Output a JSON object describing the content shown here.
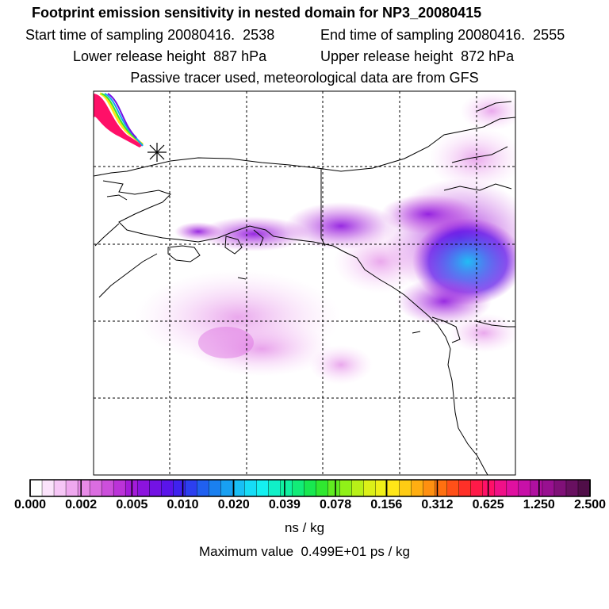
{
  "header": {
    "title": "Footprint emission sensitivity in nested domain for NP3_20080415",
    "start_time": "Start time of sampling 20080416.  2538",
    "end_time": "End time of sampling 20080416.  2555",
    "lower_height": "Lower release height  887 hPa",
    "upper_height": "Upper release height  872 hPa",
    "tracer_note": "Passive tracer used, meteorological data are from GFS"
  },
  "colorbar": {
    "tick_labels": [
      "0.000",
      "0.002",
      "0.005",
      "0.010",
      "0.020",
      "0.039",
      "0.078",
      "0.156",
      "0.312",
      "0.625",
      "1.250",
      "2.500"
    ],
    "colors": [
      "#ffffff",
      "#fbe3fb",
      "#f6c6f6",
      "#efa8ef",
      "#e78be7",
      "#db6de0",
      "#cc4fdb",
      "#bb33d8",
      "#a41bd9",
      "#8c13de",
      "#7312e4",
      "#5a14ea",
      "#3f22ef",
      "#2c3ff0",
      "#2060f0",
      "#1a80f0",
      "#18a0f2",
      "#18bff5",
      "#16dcf6",
      "#14f0f0",
      "#10f0c8",
      "#10f0a0",
      "#12ec78",
      "#18e850",
      "#30e830",
      "#60ec20",
      "#90f018",
      "#b8f018",
      "#dcf018",
      "#f0f018",
      "#ffe618",
      "#ffcc14",
      "#ffae12",
      "#ff9010",
      "#ff7010",
      "#ff5018",
      "#ff3028",
      "#ff1a48",
      "#ff1068",
      "#f01088",
      "#e010a0",
      "#c810a8",
      "#b010a0",
      "#981090",
      "#801078",
      "#681060",
      "#500e48"
    ],
    "units": "ns / kg",
    "max_value": "Maximum value  0.499E+01 ps / kg"
  },
  "map": {
    "release_marker": "asterisk-release-point-icon",
    "grid": true
  }
}
